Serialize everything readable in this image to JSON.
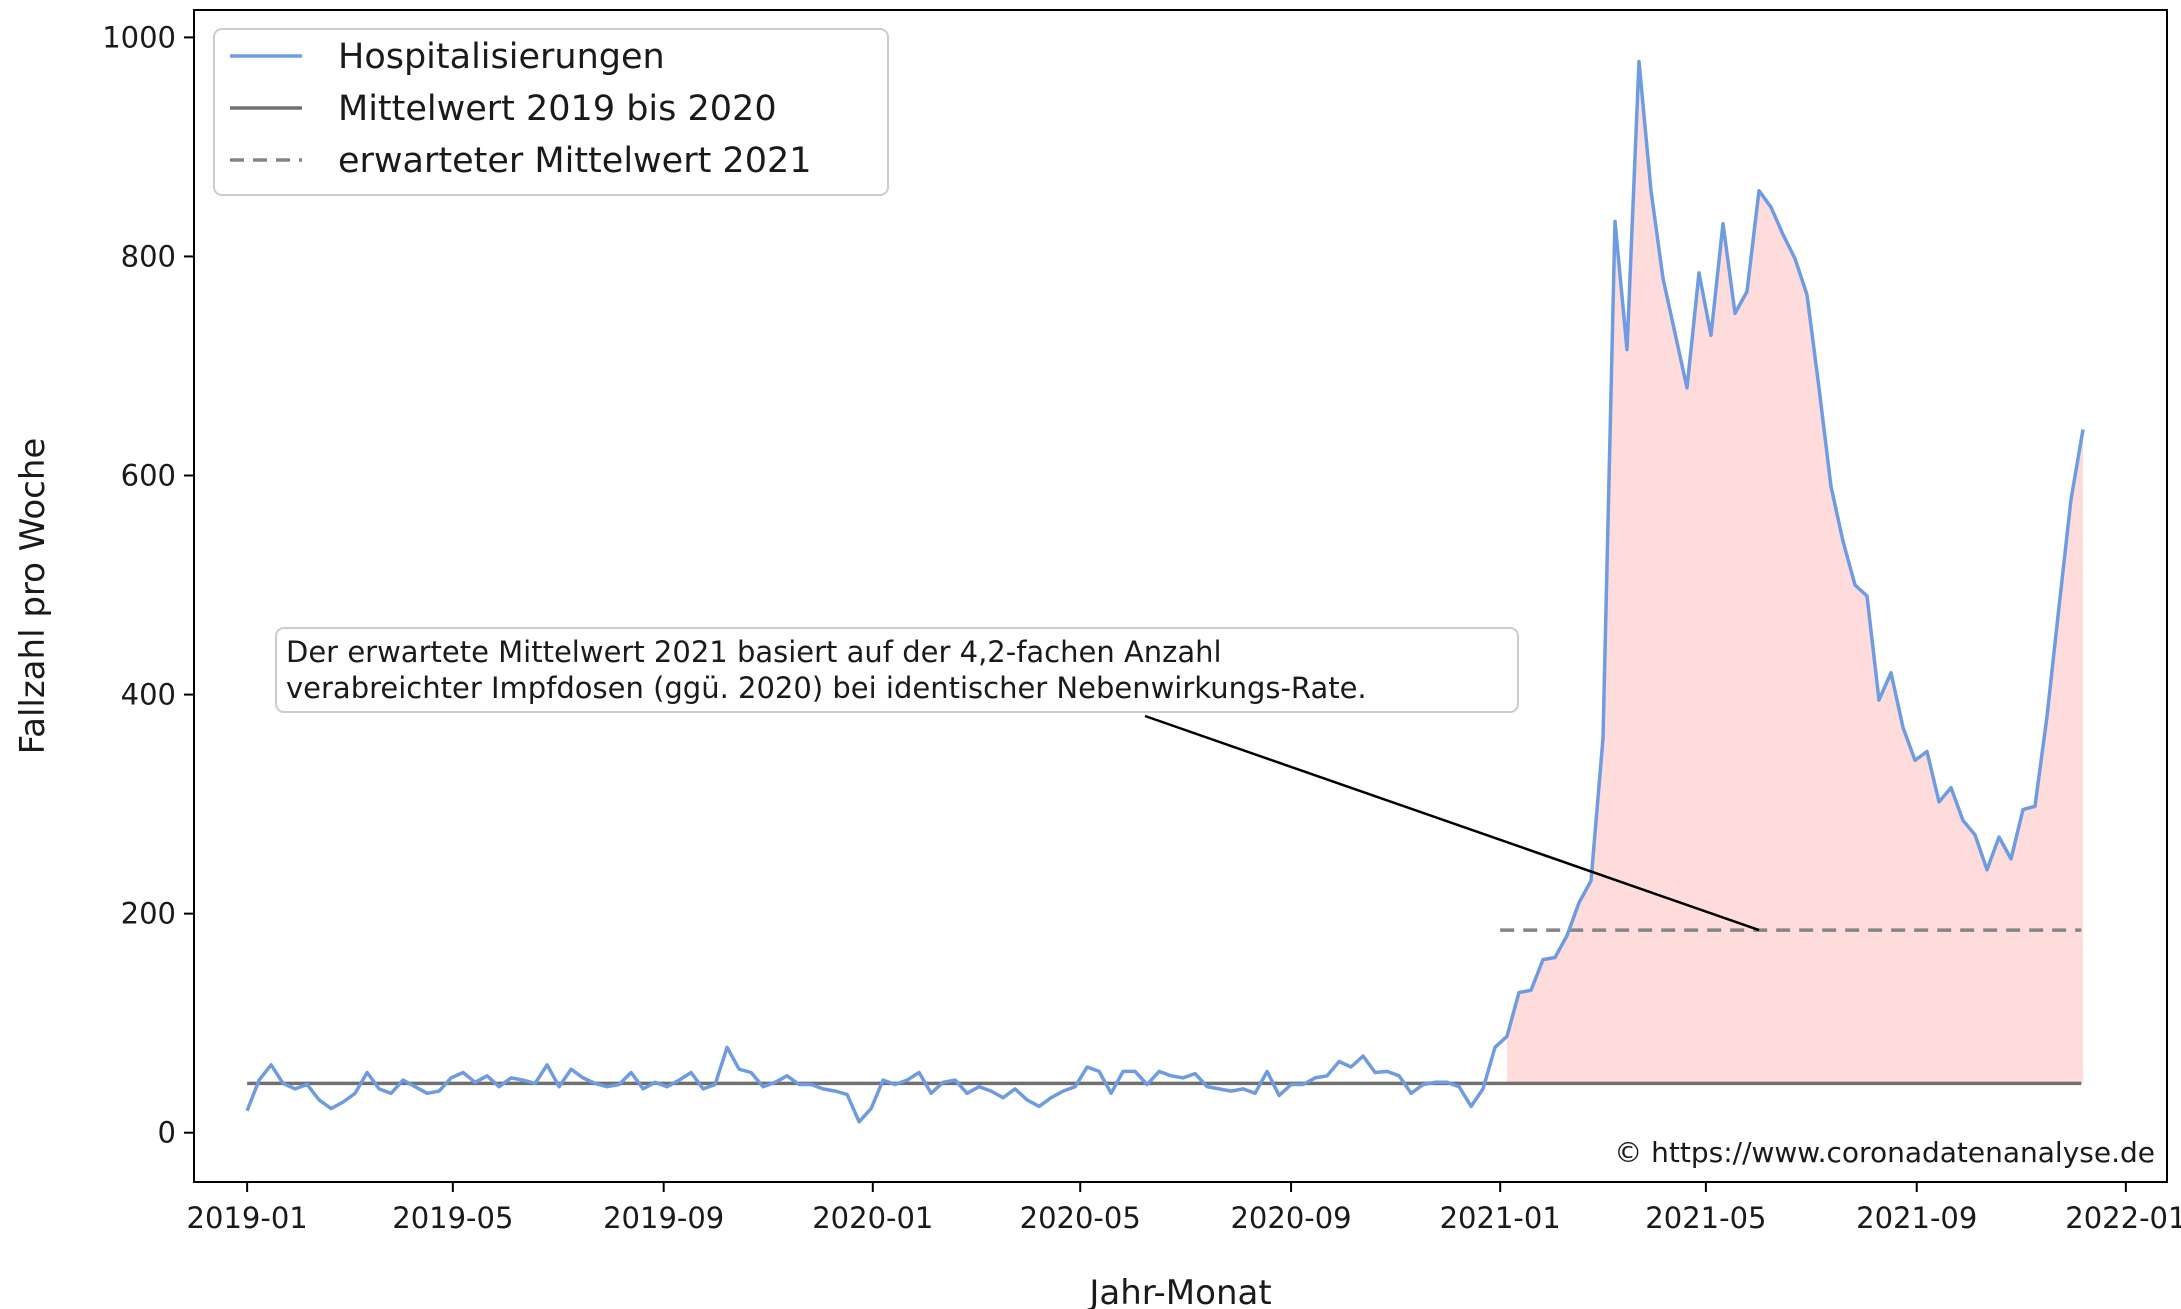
{
  "chart_data": {
    "type": "line",
    "title": "",
    "xlabel": "Jahr-Monat",
    "ylabel": "Fallzahl pro Woche",
    "ylim": [
      -45,
      1025
    ],
    "xlim": [
      "2018-12-01",
      "2022-01-25"
    ],
    "x_ticks": [
      "2019-01",
      "2019-05",
      "2019-09",
      "2020-01",
      "2020-05",
      "2020-09",
      "2021-01",
      "2021-05",
      "2021-09",
      "2022-01"
    ],
    "y_ticks": [
      0,
      200,
      400,
      600,
      800,
      1000
    ],
    "grid": false,
    "legend_position": "top-left",
    "series": [
      {
        "name": "Hospitalisierungen",
        "color": "#6f9be0",
        "style": "solid",
        "start": "2019-01-01",
        "interval_days": 7,
        "values": [
          20,
          48,
          62,
          45,
          40,
          44,
          30,
          22,
          28,
          36,
          55,
          40,
          36,
          48,
          42,
          36,
          38,
          50,
          55,
          46,
          52,
          42,
          50,
          48,
          45,
          62,
          42,
          58,
          50,
          45,
          42,
          44,
          55,
          40,
          46,
          42,
          48,
          55,
          40,
          44,
          78,
          58,
          55,
          42,
          46,
          52,
          44,
          44,
          40,
          38,
          35,
          10,
          22,
          48,
          44,
          48,
          55,
          36,
          46,
          48,
          36,
          42,
          38,
          32,
          40,
          30,
          24,
          32,
          38,
          42,
          60,
          56,
          36,
          56,
          56,
          44,
          56,
          52,
          50,
          54,
          42,
          40,
          38,
          40,
          36,
          56,
          34,
          44,
          44,
          50,
          52,
          65,
          60,
          70,
          55,
          56,
          52,
          36,
          44,
          46,
          46,
          42,
          24,
          40,
          78,
          88,
          128,
          130,
          158,
          160,
          180,
          210,
          230,
          360,
          832,
          715,
          978,
          860,
          780,
          730,
          680,
          785,
          728,
          830,
          748,
          768,
          860,
          845,
          820,
          798,
          765,
          680,
          590,
          540,
          500,
          490,
          395,
          420,
          370,
          340,
          348,
          302,
          315,
          285,
          272,
          240,
          270,
          250,
          295,
          298,
          380,
          480,
          578,
          642
        ]
      },
      {
        "name": "Mittelwert 2019 bis 2020",
        "color": "#707070",
        "style": "solid",
        "value": 45,
        "from": "2019-01-01",
        "to": "2021-12-06"
      },
      {
        "name": "erwarteter Mittelwert 2021",
        "color": "#858585",
        "style": "dashed",
        "value": 185,
        "from": "2021-01-01",
        "to": "2021-12-06"
      }
    ],
    "fill_between": {
      "from": "2021-01-01",
      "to": "2021-12-06",
      "lower": "Mittelwert 2019 bis 2020",
      "upper": "Hospitalisierungen",
      "color": "#ffdcdc"
    },
    "annotation": {
      "lines": [
        "Der erwartete Mittelwert 2021 basiert auf der 4,2-fachen Anzahl",
        "verabreichter Impfdosen (ggü. 2020) bei identischer Nebenwirkungs-Rate."
      ],
      "points_to": {
        "x": "2021-06-01",
        "y": 185
      }
    },
    "credit": "© https://www.coronadatenanalyse.de"
  }
}
